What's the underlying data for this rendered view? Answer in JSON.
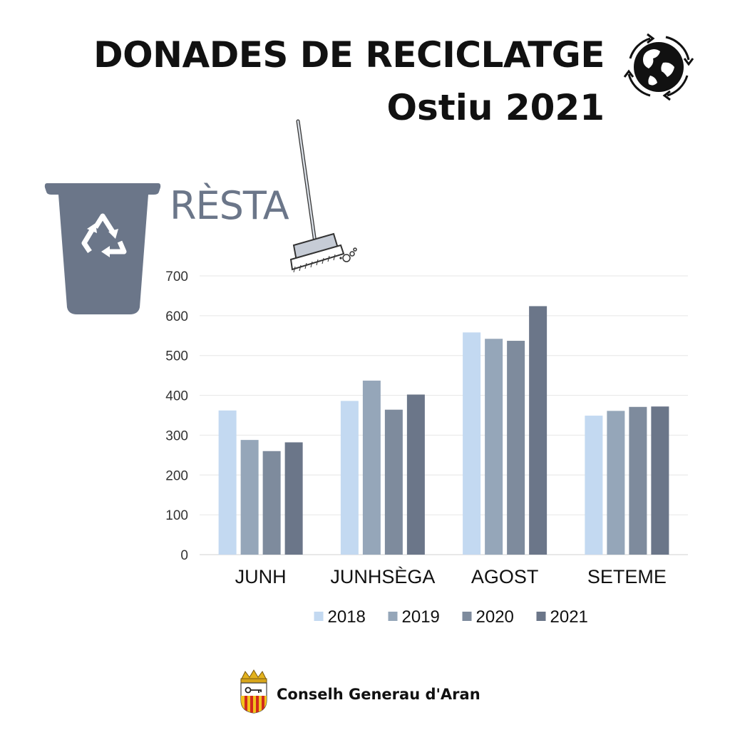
{
  "header": {
    "title": "DONADES DE RECICLATGE",
    "subtitle": "Ostiu 2021",
    "globe_icon": "globe-recycle-icon"
  },
  "category": {
    "label": "RÈSTA",
    "bin_icon": "recycle-bin-icon",
    "broom_icon": "broom-icon",
    "bin_color": "#6b7689"
  },
  "footer": {
    "text": "Conselh Generau d'Aran",
    "crest_icon": "coat-of-arms-icon"
  },
  "chart_data": {
    "type": "bar",
    "categories": [
      "JUNH",
      "JUNHSÈGA",
      "AGOST",
      "SETEME"
    ],
    "series": [
      {
        "name": "2018",
        "color": "#c3d9f1",
        "values": [
          362,
          386,
          558,
          349
        ]
      },
      {
        "name": "2019",
        "color": "#95a6b9",
        "values": [
          288,
          437,
          542,
          361
        ]
      },
      {
        "name": "2020",
        "color": "#7e8b9d",
        "values": [
          260,
          364,
          537,
          371
        ]
      },
      {
        "name": "2021",
        "color": "#6b7689",
        "values": [
          282,
          402,
          624,
          372
        ]
      }
    ],
    "ylim": [
      0,
      700
    ],
    "yticks": [
      "0",
      "100",
      "200",
      "300",
      "400",
      "500",
      "600",
      "700"
    ],
    "grid": true,
    "legend": "bottom"
  }
}
